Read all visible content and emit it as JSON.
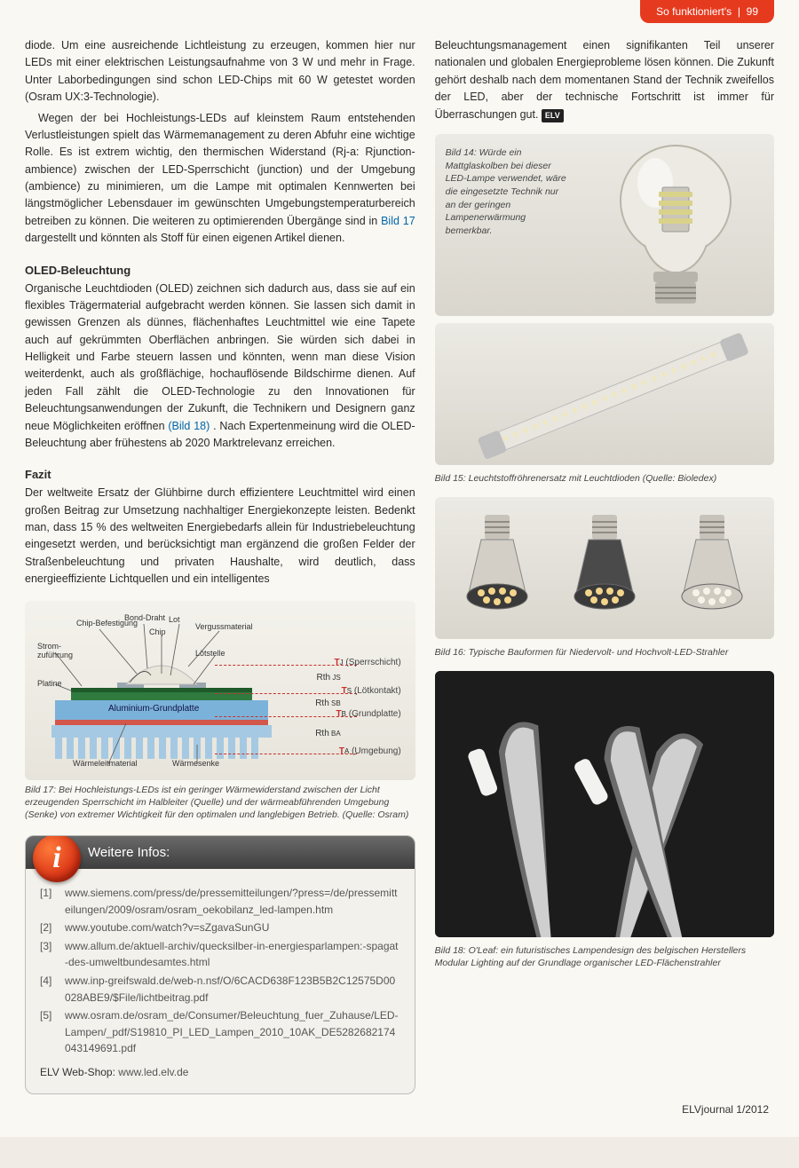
{
  "header": {
    "section": "So funktioniert's",
    "page": "99"
  },
  "footer": {
    "journal": "ELVjournal 1/2012"
  },
  "text": {
    "p1": "diode. Um eine ausreichende Lichtleistung zu erzeugen, kommen hier nur LEDs mit einer elektrischen Leistungsaufnahme von 3 W und mehr in Frage. Unter Laborbedingungen sind schon LED-Chips mit 60 W getestet worden (Osram UX:3-Technologie).",
    "p2a": "Wegen der bei Hochleistungs-LEDs auf kleinstem Raum entstehenden Verlustleistungen spielt das Wärmemanagement zu deren Abfuhr eine wichtige Rolle. Es ist extrem wichtig, den thermischen Widerstand (Rj-a: Rjunction-ambience) zwischen der LED-Sperrschicht (junction) und der Umgebung (ambience) zu minimieren, um die Lampe mit optimalen Kennwerten bei längstmöglicher Lebensdauer im gewünschten Umgebungstemperaturbereich betreiben zu können. Die weiteren zu optimierenden Übergänge sind in ",
    "p2ref": "Bild 17",
    "p2b": " dargestellt und könnten als Stoff für einen eigenen Artikel dienen.",
    "h_oled": "OLED-Beleuchtung",
    "p3a": "Organische Leuchtdioden (OLED) zeichnen sich dadurch aus, dass sie auf ein flexibles Trägermaterial aufgebracht werden können. Sie lassen sich damit in gewissen Grenzen als dünnes, flächenhaftes Leuchtmittel wie eine Tapete auch auf gekrümmten Oberflächen anbringen. Sie würden sich dabei in Helligkeit und Farbe steuern lassen und könnten, wenn man diese Vision weiterdenkt, auch als großflächige, hochauflösende Bildschirme dienen. Auf jeden Fall zählt die OLED-Technologie zu den Innovationen für Beleuchtungsanwendungen der Zukunft, die Technikern und Designern ganz neue Möglichkeiten eröffnen ",
    "p3ref": "(Bild 18)",
    "p3b": ". Nach Expertenmeinung wird die OLED-Beleuchtung aber frühestens ab 2020 Marktrelevanz erreichen.",
    "h_fazit": "Fazit",
    "p4": "Der weltweite Ersatz der Glühbirne durch effizientere Leuchtmittel wird einen großen Beitrag zur Umsetzung nachhaltiger Energiekonzepte leisten. Bedenkt man, dass 15 % des weltweiten Energiebedarfs allein für Industriebeleuchtung eingesetzt werden, und berücksichtigt man ergänzend die großen Felder der Straßenbeleuchtung und privaten Haushalte, wird deutlich, dass energieeffiziente Lichtquellen und ein intelligentes",
    "p_right": "Beleuchtungsmanagement einen signifikanten Teil unserer nationalen und globalen Energieprobleme lösen können. Die Zukunft gehört deshalb nach dem momentanen Stand der Technik zweifellos der LED, aber der technische Fortschritt ist immer für Überraschungen gut."
  },
  "fig14": {
    "caption": "Bild 14: Würde ein Mattglaskolben bei dieser LED-Lampe verwendet, wäre die eingesetzte Technik nur an der geringen Lampenerwärmung bemerkbar.",
    "bulb": {
      "glass_fill": "#eceae2",
      "glass_stroke": "#b9b5a9",
      "socket_fill": "#b8b5ad",
      "led_color": "#d9d28a"
    }
  },
  "fig15": {
    "caption": "Bild 15: Leuchtstoffröhrenersatz mit Leuchtdioden (Quelle: Bioledex)",
    "tube": {
      "body": "#e8e6df",
      "cap": "#bfbfbf",
      "led": "#efe7c3"
    }
  },
  "fig16": {
    "caption": "Bild 16: Typische Bauformen für Niedervolt- und Hochvolt-LED-Strahler",
    "lamps": [
      {
        "socket": "#c7c3bb",
        "body": "#d3cfc6",
        "face": "#3a3a3a",
        "led": "#f3d58b"
      },
      {
        "socket": "#c7c3bb",
        "body": "#4a4a4a",
        "face": "#3a3a3a",
        "led": "#f3d58b"
      },
      {
        "socket": "#c7c3bb",
        "body": "#d3cfc6",
        "face": "#cfcbc2",
        "led": "#f6f3e8"
      }
    ]
  },
  "diagram17": {
    "caption": "Bild 17: Bei Hochleistungs-LEDs ist ein geringer Wärmewiderstand zwischen der Licht erzeugenden Sperrschicht im Halbleiter (Quelle) und der wärmeabführenden Umgebung (Senke) von extremer Wichtigkeit für den optimalen und langlebigen Betrieb. (Quelle: Osram)",
    "labels_top": [
      "Chip-Befestigung",
      "Bond-Draht",
      "Lot",
      "Chip",
      "Vergussmaterial",
      "Lötstelle"
    ],
    "labels_left": [
      "Strom-zuführung",
      "Platine"
    ],
    "label_plate": "Aluminium-Grundplatte",
    "labels_bottom": [
      "Wärmeleitmaterial",
      "Wärmesenke"
    ],
    "thermals": [
      {
        "t": "TJ",
        "desc": "(Sperrschicht)",
        "r": "Rth JS"
      },
      {
        "t": "TS",
        "desc": "(Lötkontakt)",
        "r": "Rth SB"
      },
      {
        "t": "TB",
        "desc": "(Grundplatte)",
        "r": "Rth BA"
      },
      {
        "t": "TA",
        "desc": "(Umgebung)",
        "r": ""
      }
    ],
    "colors": {
      "lens": "#e8e6da",
      "chip": "#c63a2e",
      "pad": "#9aa7b0",
      "pcb": "#2f7a3e",
      "pcb_dark": "#1e5a2a",
      "plate": "#7bb2d9",
      "heatsink": "#a5c9e2",
      "material": "#d2574a",
      "line": "#c6302b"
    }
  },
  "fig18": {
    "caption": "Bild 18: O'Leaf: ein futuristisches Lampendesign des belgischen Herstellers Modular Lighting auf der Grundlage organischer LED-Flächenstrahler",
    "colors": {
      "bg": "#1c1c1c",
      "leaf": "#cfcfcf",
      "leaf_dark": "#6b6b6b",
      "glow": "#f2f2f0"
    }
  },
  "infobox": {
    "title": "Weitere Infos:",
    "refs": [
      {
        "idx": "[1]",
        "url": "www.siemens.com/press/de/pressemitteilungen/?press=/de/pressemitteilungen/2009/osram/osram_oekobilanz_led-lampen.htm"
      },
      {
        "idx": "[2]",
        "url": "www.youtube.com/watch?v=sZgavaSunGU"
      },
      {
        "idx": "[3]",
        "url": "www.allum.de/aktuell-archiv/quecksilber-in-energiesparlampen:-spagat-des-umweltbundesamtes.html"
      },
      {
        "idx": "[4]",
        "url": "www.inp-greifswald.de/web-n.nsf/O/6CACD638F123B5B2C12575D00028ABE9/$File/lichtbeitrag.pdf"
      },
      {
        "idx": "[5]",
        "url": "www.osram.de/osram_de/Consumer/Beleuchtung_fuer_Zuhause/LED-Lampen/_pdf/S19810_PI_LED_Lampen_2010_10AK_DE5282682174043149691.pdf"
      }
    ],
    "webshop_label": "ELV Web-Shop:",
    "webshop_url": "www.led.elv.de"
  }
}
